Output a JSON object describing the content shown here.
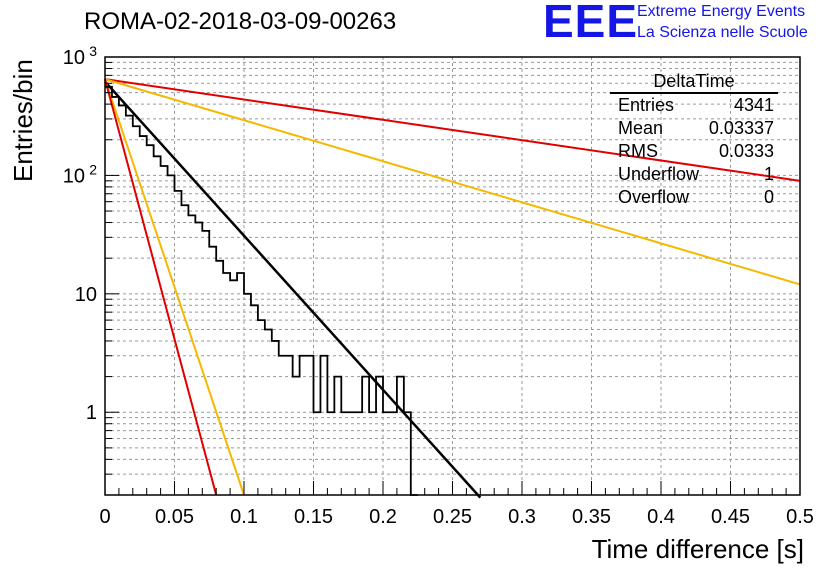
{
  "chart_data": {
    "type": "line",
    "title": "ROMA-02-2018-03-09-00263",
    "xlabel": "Time difference [s]",
    "ylabel": "Entries/bin",
    "xlim": [
      0,
      0.5
    ],
    "ylim": [
      0.2,
      1000
    ],
    "yscale": "log",
    "grid": true,
    "x_ticks": [
      "0",
      "0.05",
      "0.1",
      "0.15",
      "0.2",
      "0.25",
      "0.3",
      "0.35",
      "0.4",
      "0.45",
      "0.5"
    ],
    "y_ticks": [
      {
        "value": 1,
        "label": "1"
      },
      {
        "value": 10,
        "label": "10"
      },
      {
        "value": 100,
        "label": "10",
        "exp": "2"
      },
      {
        "value": 1000,
        "label": "10",
        "exp": "3"
      }
    ],
    "histogram": {
      "name": "DeltaTime",
      "bin_width": 0.005,
      "counts": [
        560,
        460,
        390,
        320,
        260,
        215,
        180,
        145,
        120,
        100,
        74,
        56,
        46,
        40,
        34,
        25,
        19,
        15,
        13,
        15,
        10,
        8,
        6,
        5,
        4,
        3,
        3,
        2,
        3,
        3,
        1,
        3,
        1,
        2,
        1,
        1,
        1,
        2,
        1,
        2,
        1,
        1,
        2,
        1,
        0
      ]
    },
    "series": [
      {
        "color": "#000000",
        "x": [
          0,
          0.27
        ],
        "y": [
          620,
          0.19
        ]
      },
      {
        "color": "#e00000",
        "x": [
          0,
          0.5
        ],
        "y": [
          650,
          90
        ]
      },
      {
        "color": "#f5b800",
        "x": [
          0,
          0.5
        ],
        "y": [
          650,
          12
        ]
      },
      {
        "color": "#f5b800",
        "x": [
          0,
          0.1
        ],
        "y": [
          650,
          0.2
        ]
      },
      {
        "color": "#e00000",
        "x": [
          0,
          0.08
        ],
        "y": [
          650,
          0.2
        ]
      }
    ]
  },
  "logo": {
    "text": "EEE",
    "line1": "Extreme Energy Events",
    "line2": "La Scienza nelle Scuole",
    "color": "#1515e6"
  },
  "stats": {
    "title": "DeltaTime",
    "rows": [
      {
        "label": "Entries",
        "value": "4341"
      },
      {
        "label": "Mean",
        "value": "0.03337"
      },
      {
        "label": "RMS",
        "value": "0.0333"
      },
      {
        "label": "Underflow",
        "value": "1"
      },
      {
        "label": "Overflow",
        "value": "0"
      }
    ]
  }
}
